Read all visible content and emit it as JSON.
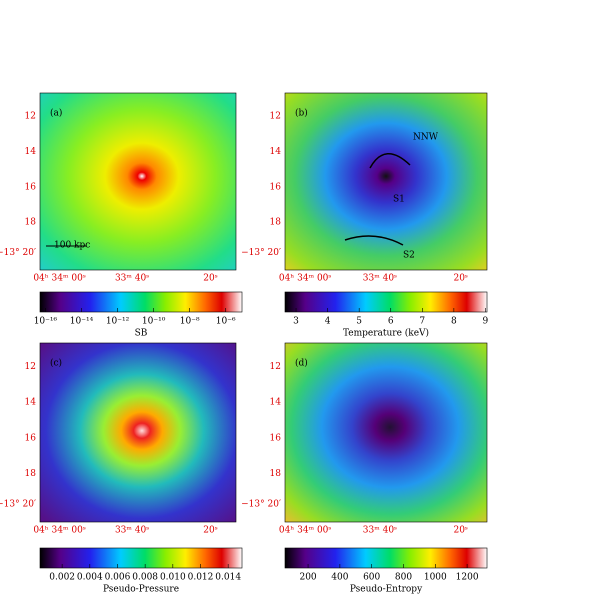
{
  "panels": [
    {
      "label": "(a)",
      "annotations": [
        "100 kpc"
      ],
      "colorbar": {
        "title": "SB",
        "scale": "log",
        "lim": [
          5e-17,
          8e-06
        ],
        "ticks": [
          {
            "value": 1e-16,
            "label": "10⁻¹⁶"
          },
          {
            "value": 1e-14,
            "label": "10⁻¹⁴"
          },
          {
            "value": 1e-12,
            "label": "10⁻¹²"
          },
          {
            "value": 1e-10,
            "label": "10⁻¹⁰"
          },
          {
            "value": 1e-08,
            "label": "10⁻⁸"
          },
          {
            "value": 1e-06,
            "label": "10⁻⁶"
          }
        ]
      }
    },
    {
      "label": "(b)",
      "annotations": [
        "NNW",
        "S1",
        "S2"
      ],
      "colorbar": {
        "title": "Temperature (keV)",
        "scale": "linear",
        "lim": [
          2.65,
          9.05
        ],
        "ticks": [
          3,
          4,
          5,
          6,
          7,
          8,
          9
        ]
      }
    },
    {
      "label": "(c)",
      "annotations": [],
      "colorbar": {
        "title": "Pseudo-Pressure",
        "scale": "linear",
        "lim": [
          0.0004,
          0.015
        ],
        "ticks": [
          0.002,
          0.004,
          0.006,
          0.008,
          {
            "value": 0.01,
            "label": "0.010"
          },
          0.012,
          0.014
        ]
      }
    },
    {
      "label": "(d)",
      "annotations": [],
      "colorbar": {
        "title": "Pseudo-Entropy",
        "scale": "linear",
        "lim": [
          55,
          1325
        ],
        "ticks": [
          200,
          400,
          600,
          800,
          1000,
          1200
        ]
      }
    }
  ],
  "dec_labels": [
    "12",
    "14",
    "16",
    "18",
    "−13° 20′"
  ],
  "ra_labels": [
    "04ʰ 34ᵐ 00ˢ",
    "33ᵐ 40ˢ",
    "20ˢ"
  ]
}
